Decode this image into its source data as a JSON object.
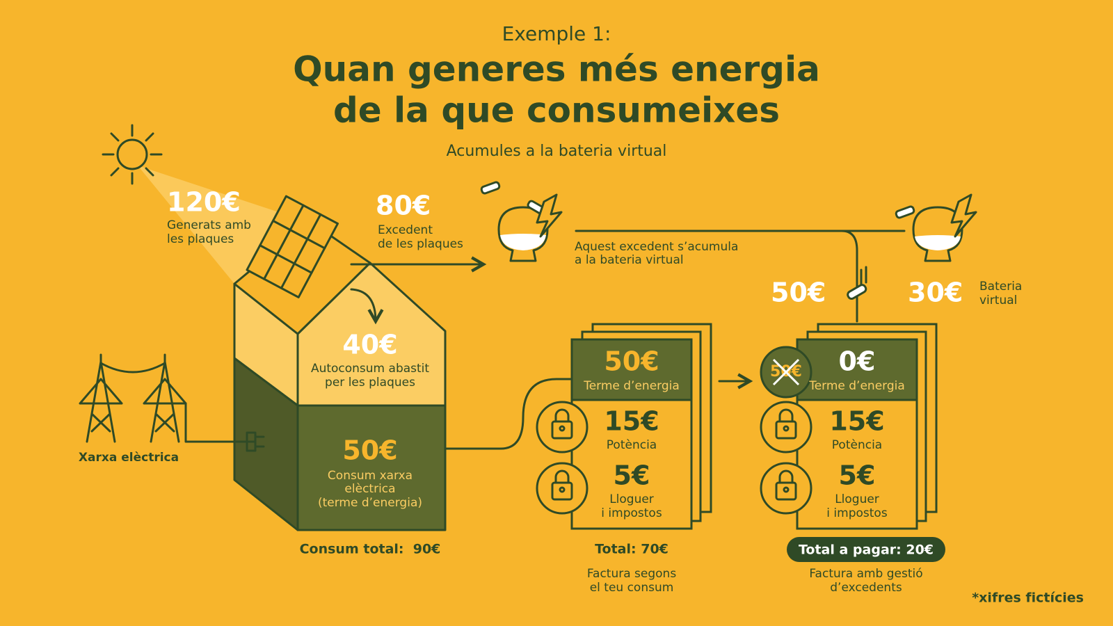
{
  "header": {
    "kicker": "Exemple 1:",
    "title_lines": [
      "Quan generes més energia",
      "de la que consumeixes"
    ],
    "subtitle": "Acumules a la bateria virtual"
  },
  "generation": {
    "amount": "120€",
    "label_lines": [
      "Generats amb",
      "les plaques"
    ]
  },
  "surplus": {
    "amount": "80€",
    "label_lines": [
      "Excedent",
      "de les plaques"
    ]
  },
  "accumulation_note": {
    "lines": [
      "Aquest excedent s’acumula",
      "a la bateria virtual"
    ]
  },
  "self_consumption": {
    "amount": "40€",
    "label_lines": [
      "Autoconsum abastit",
      "per les plaques"
    ]
  },
  "grid_consumption": {
    "amount": "50€",
    "label_lines": [
      "Consum xarxa",
      "elèctrica",
      "(terme d’energia)"
    ]
  },
  "grid": {
    "label": "Xarxa elèctrica"
  },
  "total_consumption": "Consum total:  90€",
  "battery": {
    "used": "50€",
    "remaining": "30€",
    "label_lines": [
      "Bateria",
      "virtual"
    ]
  },
  "bill_1": {
    "energy": {
      "amount": "50€",
      "label": "Terme d’energia"
    },
    "power": {
      "amount": "15€",
      "label": "Potència"
    },
    "rent": {
      "amount": "5€",
      "label_lines": [
        "Lloguer",
        "i impostos"
      ]
    },
    "total": "Total: 70€",
    "caption_lines": [
      "Factura segons",
      "el teu consum"
    ]
  },
  "bill_2": {
    "crossed_amount": "50€",
    "energy": {
      "amount": "0€",
      "label": "Terme d’energia"
    },
    "power": {
      "amount": "15€",
      "label": "Potència"
    },
    "rent": {
      "amount": "5€",
      "label_lines": [
        "Lloguer",
        "i impostos"
      ]
    },
    "total": "Total a pagar: 20€",
    "caption_lines": [
      "Factura amb gestió",
      "d’excedents"
    ]
  },
  "footnote": "*xifres fictícies"
}
